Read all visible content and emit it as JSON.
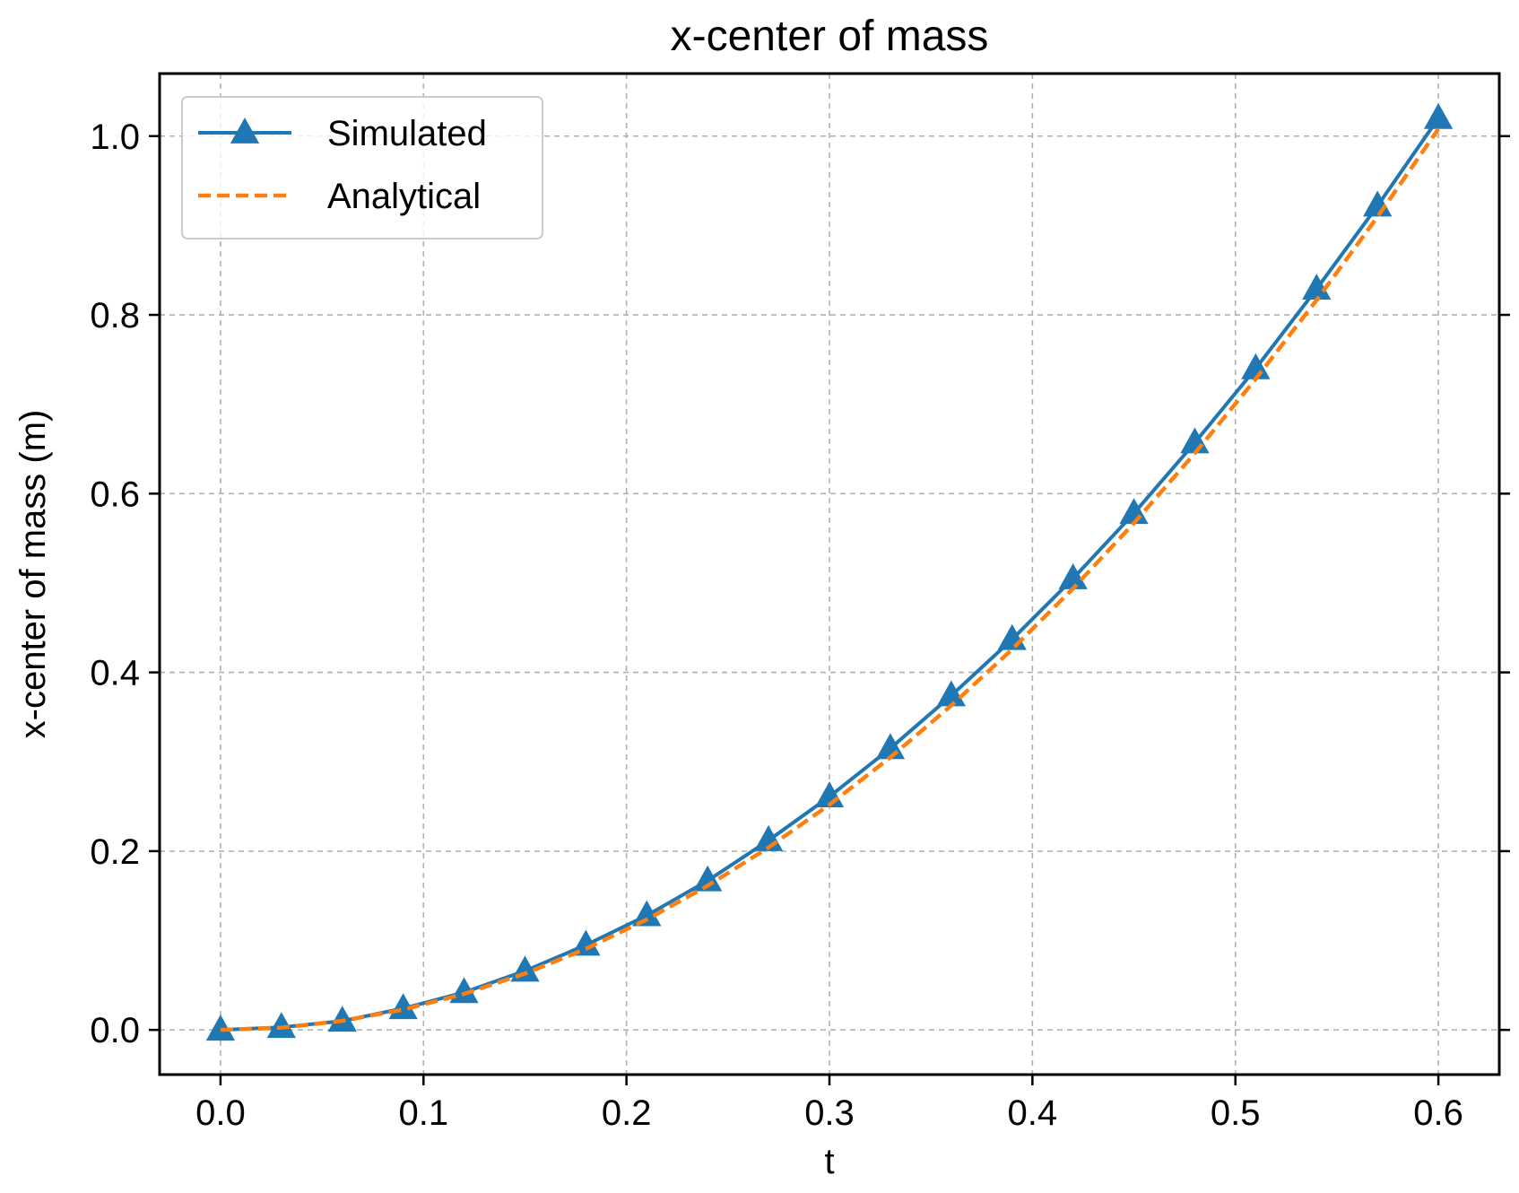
{
  "chart_data": {
    "type": "line",
    "title": "x-center of mass",
    "xlabel": "t",
    "ylabel": "x-center of mass (m)",
    "xlim": [
      -0.03,
      0.63
    ],
    "ylim": [
      -0.05,
      1.07
    ],
    "xticks": [
      0.0,
      0.1,
      0.2,
      0.3,
      0.4,
      0.5,
      0.6
    ],
    "xtick_labels": [
      "0.0",
      "0.1",
      "0.2",
      "0.3",
      "0.4",
      "0.5",
      "0.6"
    ],
    "yticks": [
      0.0,
      0.2,
      0.4,
      0.6,
      0.8,
      1.0
    ],
    "ytick_labels": [
      "0.0",
      "0.2",
      "0.4",
      "0.6",
      "0.8",
      "1.0"
    ],
    "grid": true,
    "legend_position": "top-left",
    "series": [
      {
        "name": "Simulated",
        "color": "#1f77b4",
        "style": "solid",
        "marker": "triangle",
        "x": [
          0.0,
          0.03,
          0.06,
          0.09,
          0.12,
          0.15,
          0.18,
          0.21,
          0.24,
          0.27,
          0.3,
          0.33,
          0.36,
          0.39,
          0.42,
          0.45,
          0.48,
          0.51,
          0.54,
          0.57,
          0.6
        ],
        "y": [
          0.0,
          0.003,
          0.01,
          0.024,
          0.042,
          0.066,
          0.095,
          0.128,
          0.167,
          0.212,
          0.261,
          0.315,
          0.374,
          0.437,
          0.505,
          0.578,
          0.657,
          0.74,
          0.829,
          0.922,
          1.02
        ]
      },
      {
        "name": "Analytical",
        "color": "#ff7f0e",
        "style": "dashed",
        "marker": "none",
        "x": [
          0.0,
          0.03,
          0.06,
          0.09,
          0.12,
          0.15,
          0.18,
          0.21,
          0.24,
          0.27,
          0.3,
          0.33,
          0.36,
          0.39,
          0.42,
          0.45,
          0.48,
          0.51,
          0.54,
          0.57,
          0.6
        ],
        "y": [
          0.0,
          0.0025,
          0.0101,
          0.0227,
          0.0403,
          0.063,
          0.0907,
          0.1235,
          0.1613,
          0.2041,
          0.252,
          0.3049,
          0.3629,
          0.4259,
          0.4939,
          0.567,
          0.6451,
          0.7283,
          0.8165,
          0.9097,
          1.008
        ]
      }
    ]
  }
}
